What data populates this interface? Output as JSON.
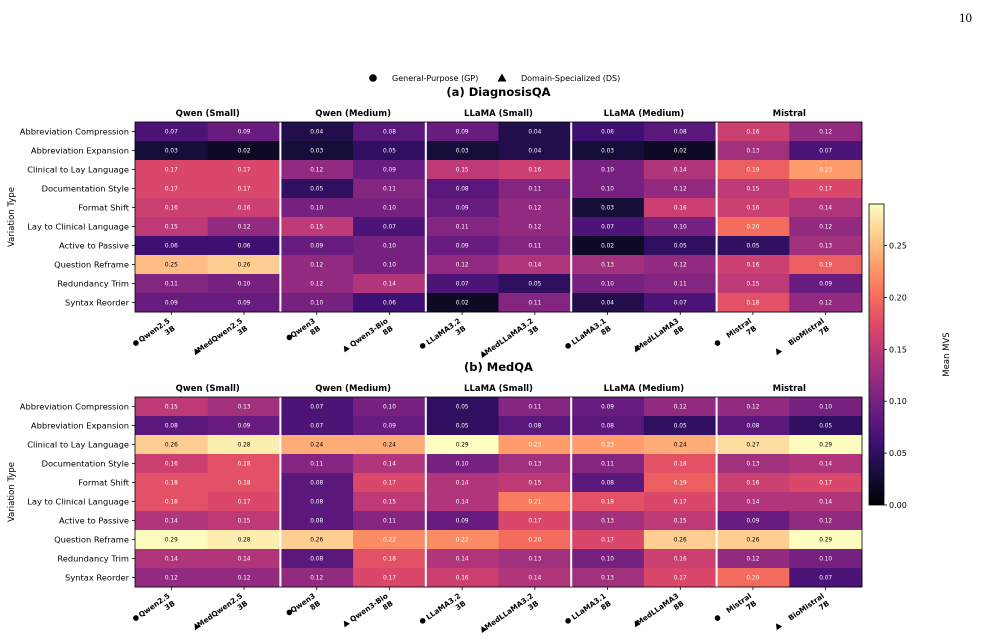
{
  "page_number": "10",
  "legend": {
    "items": [
      {
        "marker": "circle",
        "label": "General-Purpose (GP)"
      },
      {
        "marker": "triangle",
        "label": "Domain-Specialized (DS)"
      }
    ]
  },
  "colorbar": {
    "label": "Mean MVS",
    "range": [
      0.0,
      0.29
    ],
    "ticks": [
      "0.00",
      "0.05",
      "0.10",
      "0.15",
      "0.20",
      "0.25"
    ],
    "tick_values": [
      0.0,
      0.05,
      0.1,
      0.15,
      0.2,
      0.25
    ],
    "colormap": "magma"
  },
  "chart_data": [
    {
      "type": "heatmap",
      "title": "(a) DiagnosisQA",
      "ylabel": "Variation Type",
      "groups": [
        "Qwen (Small)",
        "Qwen (Medium)",
        "LLaMA (Small)",
        "LLaMA (Medium)",
        "Mistral"
      ],
      "columns": [
        {
          "marker": "circle",
          "line1": "Qwen2.5",
          "line2": "3B"
        },
        {
          "marker": "triangle",
          "line1": "MedQwen2.5",
          "line2": "3B"
        },
        {
          "marker": "circle",
          "line1": "Qwen3",
          "line2": "8B"
        },
        {
          "marker": "triangle",
          "line1": "Qwen3-Bio",
          "line2": "8B"
        },
        {
          "marker": "circle",
          "line1": "LLaMA3.2",
          "line2": "3B"
        },
        {
          "marker": "triangle",
          "line1": "MedLLaMA3.2",
          "line2": "3B"
        },
        {
          "marker": "circle",
          "line1": "LLaMA3.1",
          "line2": "8B"
        },
        {
          "marker": "triangle",
          "line1": "MedLLaMA3",
          "line2": "8B"
        },
        {
          "marker": "circle",
          "line1": "Mistral",
          "line2": "7B"
        },
        {
          "marker": "triangle",
          "line1": "BioMistral",
          "line2": "7B"
        }
      ],
      "rows": [
        "Abbreviation Compression",
        "Abbreviation Expansion",
        "Clinical to Lay Language",
        "Documentation Style",
        "Format Shift",
        "Lay to Clinical Language",
        "Active to Passive",
        "Question Reframe",
        "Redundancy Trim",
        "Syntax Reorder"
      ],
      "values": [
        [
          0.07,
          0.09,
          0.04,
          0.08,
          0.09,
          0.04,
          0.06,
          0.08,
          0.16,
          0.12
        ],
        [
          0.03,
          0.02,
          0.03,
          0.05,
          0.03,
          0.04,
          0.03,
          0.02,
          0.13,
          0.07
        ],
        [
          0.17,
          0.17,
          0.12,
          0.09,
          0.15,
          0.16,
          0.1,
          0.14,
          0.19,
          0.23
        ],
        [
          0.17,
          0.17,
          0.05,
          0.11,
          0.08,
          0.11,
          0.1,
          0.12,
          0.15,
          0.17
        ],
        [
          0.16,
          0.16,
          0.1,
          0.1,
          0.09,
          0.12,
          0.03,
          0.16,
          0.16,
          0.14
        ],
        [
          0.15,
          0.12,
          0.15,
          0.07,
          0.11,
          0.12,
          0.07,
          0.1,
          0.2,
          0.12
        ],
        [
          0.06,
          0.06,
          0.09,
          0.1,
          0.09,
          0.11,
          0.02,
          0.05,
          0.05,
          0.13
        ],
        [
          0.25,
          0.26,
          0.12,
          0.1,
          0.12,
          0.14,
          0.13,
          0.12,
          0.16,
          0.19
        ],
        [
          0.11,
          0.1,
          0.12,
          0.14,
          0.07,
          0.05,
          0.1,
          0.11,
          0.15,
          0.09
        ],
        [
          0.09,
          0.09,
          0.1,
          0.06,
          0.02,
          0.11,
          0.04,
          0.07,
          0.18,
          0.12
        ]
      ]
    },
    {
      "type": "heatmap",
      "title": "(b) MedQA",
      "ylabel": "Variation Type",
      "groups": [
        "Qwen (Small)",
        "Qwen (Medium)",
        "LLaMA (Small)",
        "LLaMA (Medium)",
        "Mistral"
      ],
      "columns": [
        {
          "marker": "circle",
          "line1": "Qwen2.5",
          "line2": "3B"
        },
        {
          "marker": "triangle",
          "line1": "MedQwen2.5",
          "line2": "3B"
        },
        {
          "marker": "circle",
          "line1": "Qwen3",
          "line2": "8B"
        },
        {
          "marker": "triangle",
          "line1": "Qwen3-Bio",
          "line2": "8B"
        },
        {
          "marker": "circle",
          "line1": "LLaMA3.2",
          "line2": "3B"
        },
        {
          "marker": "triangle",
          "line1": "MedLLaMA3.2",
          "line2": "3B"
        },
        {
          "marker": "circle",
          "line1": "LLaMA3.1",
          "line2": "8B"
        },
        {
          "marker": "triangle",
          "line1": "MedLLaMA3",
          "line2": "8B"
        },
        {
          "marker": "circle",
          "line1": "Mistral",
          "line2": "7B"
        },
        {
          "marker": "triangle",
          "line1": "BioMistral",
          "line2": "7B"
        }
      ],
      "rows": [
        "Abbreviation Compression",
        "Abbreviation Expansion",
        "Clinical to Lay Language",
        "Documentation Style",
        "Format Shift",
        "Lay to Clinical Language",
        "Active to Passive",
        "Question Reframe",
        "Redundancy Trim",
        "Syntax Reorder"
      ],
      "values": [
        [
          0.15,
          0.13,
          0.07,
          0.1,
          0.05,
          0.11,
          0.09,
          0.12,
          0.12,
          0.1
        ],
        [
          0.08,
          0.09,
          0.07,
          0.09,
          0.05,
          0.08,
          0.08,
          0.05,
          0.08,
          0.05
        ],
        [
          0.26,
          0.28,
          0.24,
          0.24,
          0.29,
          0.23,
          0.23,
          0.24,
          0.27,
          0.29
        ],
        [
          0.16,
          0.18,
          0.11,
          0.14,
          0.1,
          0.13,
          0.11,
          0.18,
          0.13,
          0.14
        ],
        [
          0.18,
          0.18,
          0.08,
          0.17,
          0.14,
          0.15,
          0.08,
          0.19,
          0.16,
          0.17
        ],
        [
          0.18,
          0.17,
          0.08,
          0.15,
          0.14,
          0.21,
          0.18,
          0.17,
          0.14,
          0.14
        ],
        [
          0.14,
          0.15,
          0.08,
          0.11,
          0.09,
          0.17,
          0.13,
          0.15,
          0.09,
          0.12
        ],
        [
          0.29,
          0.28,
          0.26,
          0.22,
          0.22,
          0.2,
          0.17,
          0.26,
          0.26,
          0.29
        ],
        [
          0.14,
          0.14,
          0.08,
          0.18,
          0.14,
          0.13,
          0.1,
          0.16,
          0.12,
          0.1
        ],
        [
          0.12,
          0.12,
          0.12,
          0.17,
          0.16,
          0.14,
          0.13,
          0.17,
          0.2,
          0.07
        ]
      ]
    }
  ]
}
